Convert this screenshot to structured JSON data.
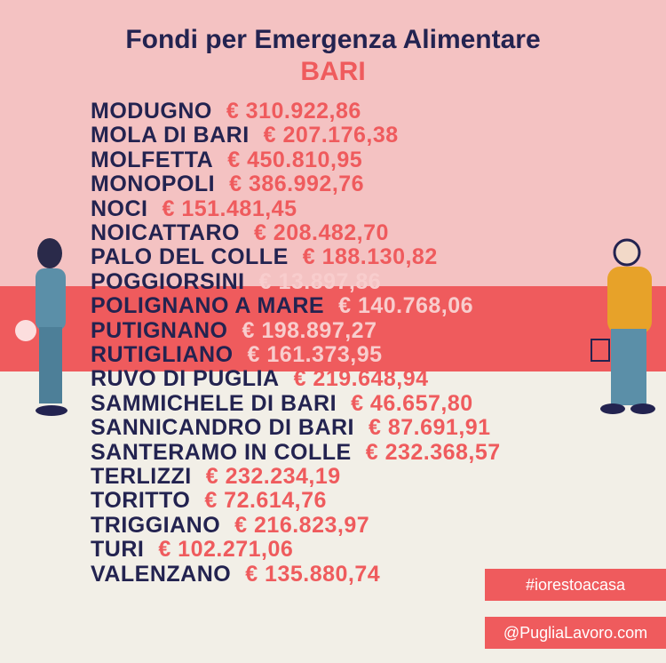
{
  "header": {
    "title": "Fondi per Emergenza Alimentare",
    "subtitle": "BARI"
  },
  "rows": [
    {
      "name": "MODUGNO",
      "amount": "€ 310.922,86"
    },
    {
      "name": "MOLA DI BARI",
      "amount": "€ 207.176,38"
    },
    {
      "name": "MOLFETTA",
      "amount": "€ 450.810,95"
    },
    {
      "name": "MONOPOLI",
      "amount": "€ 386.992,76"
    },
    {
      "name": "NOCI",
      "amount": "€ 151.481,45"
    },
    {
      "name": "NOICATTARO",
      "amount": "€ 208.482,70"
    },
    {
      "name": "PALO DEL COLLE",
      "amount": "€ 188.130,82"
    },
    {
      "name": "POGGIORSINI",
      "amount": "€ 13.897,86"
    },
    {
      "name": "POLIGNANO A MARE",
      "amount": "€ 140.768,06"
    },
    {
      "name": "PUTIGNANO",
      "amount": "€ 198.897,27"
    },
    {
      "name": "RUTIGLIANO",
      "amount": "€ 161.373,95"
    },
    {
      "name": "RUVO DI PUGLIA",
      "amount": "€ 219.648,94"
    },
    {
      "name": "SAMMICHELE DI BARI",
      "amount": "€ 46.657,80"
    },
    {
      "name": "SANNICANDRO DI BARI",
      "amount": "€ 87.691,91"
    },
    {
      "name": "SANTERAMO IN COLLE",
      "amount": "€ 232.368,57"
    },
    {
      "name": "TERLIZZI",
      "amount": "€ 232.234,19"
    },
    {
      "name": "TORITTO",
      "amount": "€ 72.614,76"
    },
    {
      "name": "TRIGGIANO",
      "amount": "€ 216.823,97"
    },
    {
      "name": "TURI",
      "amount": "€ 102.271,06"
    },
    {
      "name": "VALENZANO",
      "amount": "€ 135.880,74"
    }
  ],
  "tags": [
    "#iorestoacasa",
    "@PugliaLavoro.com"
  ]
}
